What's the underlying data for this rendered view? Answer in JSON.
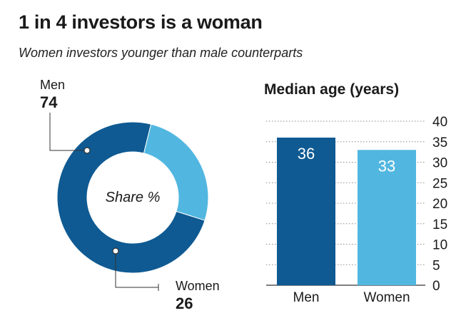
{
  "title": "1 in 4 investors is a woman",
  "subtitle": "Women investors younger than male counterparts",
  "colors": {
    "men": "#0f5a92",
    "women": "#52b7e0",
    "grid": "#8a8a8a",
    "text": "#1a1a1a"
  },
  "chart_data": [
    {
      "type": "pie",
      "variant": "donut",
      "center_label": "Share %",
      "slices": [
        {
          "label": "Men",
          "value": 74
        },
        {
          "label": "Women",
          "value": 26
        }
      ]
    },
    {
      "type": "bar",
      "title": "Median age (years)",
      "categories": [
        "Men",
        "Women"
      ],
      "values": [
        36,
        33
      ],
      "ylim": [
        0,
        40
      ],
      "yticks": [
        0,
        5,
        10,
        15,
        20,
        25,
        30,
        35,
        40
      ],
      "y_axis_side": "right",
      "grid": true,
      "grid_style": "dotted"
    }
  ]
}
